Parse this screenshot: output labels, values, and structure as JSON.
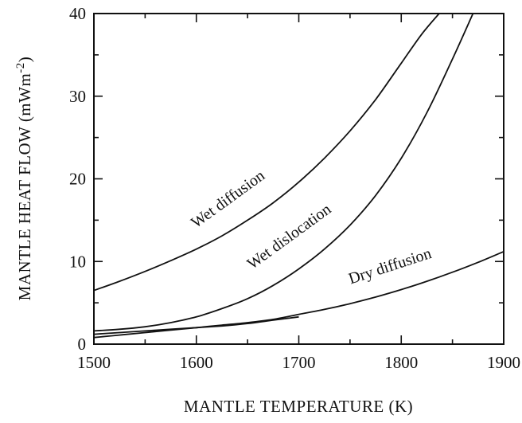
{
  "chart_data": {
    "type": "line",
    "title": "",
    "xlabel": "MANTLE TEMPERATURE (K)",
    "ylabel_main": "MANTLE HEAT FLOW (mWm",
    "ylabel_sup": "-2",
    "ylabel_close": ")",
    "xlim": [
      1500,
      1900
    ],
    "ylim": [
      0,
      40
    ],
    "xticks": [
      1500,
      1600,
      1700,
      1800,
      1900
    ],
    "yticks": [
      0,
      10,
      20,
      30,
      40
    ],
    "xtick_labels": [
      "1500",
      "1600",
      "1700",
      "1800",
      "1900"
    ],
    "ytick_labels": [
      "0",
      "10",
      "20",
      "30",
      "40"
    ],
    "grid": false,
    "legend": "none",
    "series": [
      {
        "name": "Wet diffusion",
        "x": [
          1500,
          1525,
          1550,
          1575,
          1600,
          1625,
          1650,
          1675,
          1700,
          1725,
          1750,
          1775,
          1800,
          1820,
          1837
        ],
        "y": [
          6.5,
          7.6,
          8.8,
          10.1,
          11.5,
          13.1,
          15.0,
          17.1,
          19.6,
          22.5,
          25.8,
          29.6,
          34.0,
          37.5,
          40.0
        ]
      },
      {
        "name": "Wet dislocation",
        "x": [
          1500,
          1525,
          1550,
          1575,
          1600,
          1625,
          1650,
          1675,
          1700,
          1725,
          1750,
          1775,
          1800,
          1825,
          1850,
          1870
        ],
        "y": [
          1.6,
          1.8,
          2.1,
          2.6,
          3.3,
          4.3,
          5.5,
          7.1,
          9.1,
          11.5,
          14.4,
          18.0,
          22.5,
          28.0,
          34.5,
          40.0
        ]
      },
      {
        "name": "Dry diffusion",
        "x": [
          1500,
          1525,
          1550,
          1575,
          1600,
          1625,
          1650,
          1675,
          1700,
          1725,
          1750,
          1775,
          1800,
          1825,
          1850,
          1875,
          1900
        ],
        "y": [
          0.8,
          1.1,
          1.4,
          1.7,
          2.0,
          2.3,
          2.6,
          3.0,
          3.6,
          4.2,
          4.9,
          5.7,
          6.6,
          7.6,
          8.7,
          9.9,
          11.2
        ]
      },
      {
        "name": "",
        "x": [
          1500,
          1525,
          1550,
          1575,
          1600,
          1625,
          1650,
          1675,
          1700
        ],
        "y": [
          1.2,
          1.4,
          1.6,
          1.8,
          2.0,
          2.2,
          2.5,
          2.9,
          3.3
        ]
      }
    ]
  }
}
